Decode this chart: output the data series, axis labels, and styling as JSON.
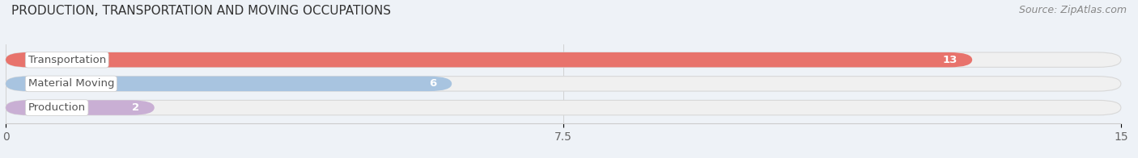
{
  "title": "PRODUCTION, TRANSPORTATION AND MOVING OCCUPATIONS",
  "source": "Source: ZipAtlas.com",
  "categories": [
    "Transportation",
    "Material Moving",
    "Production"
  ],
  "values": [
    13,
    6,
    2
  ],
  "bar_colors": [
    "#e8736c",
    "#a8c4e0",
    "#c9afd4"
  ],
  "xlim": [
    0,
    15
  ],
  "xticks": [
    0,
    7.5,
    15
  ],
  "bar_height": 0.62,
  "title_fontsize": 11,
  "tick_fontsize": 10,
  "label_fontsize": 9.5,
  "source_fontsize": 9,
  "background_color": "#eef2f7",
  "track_color": "#f0f0f0",
  "track_edge_color": "#d8d8d8",
  "value_inside_color": "#ffffff",
  "label_text_color": "#555555"
}
